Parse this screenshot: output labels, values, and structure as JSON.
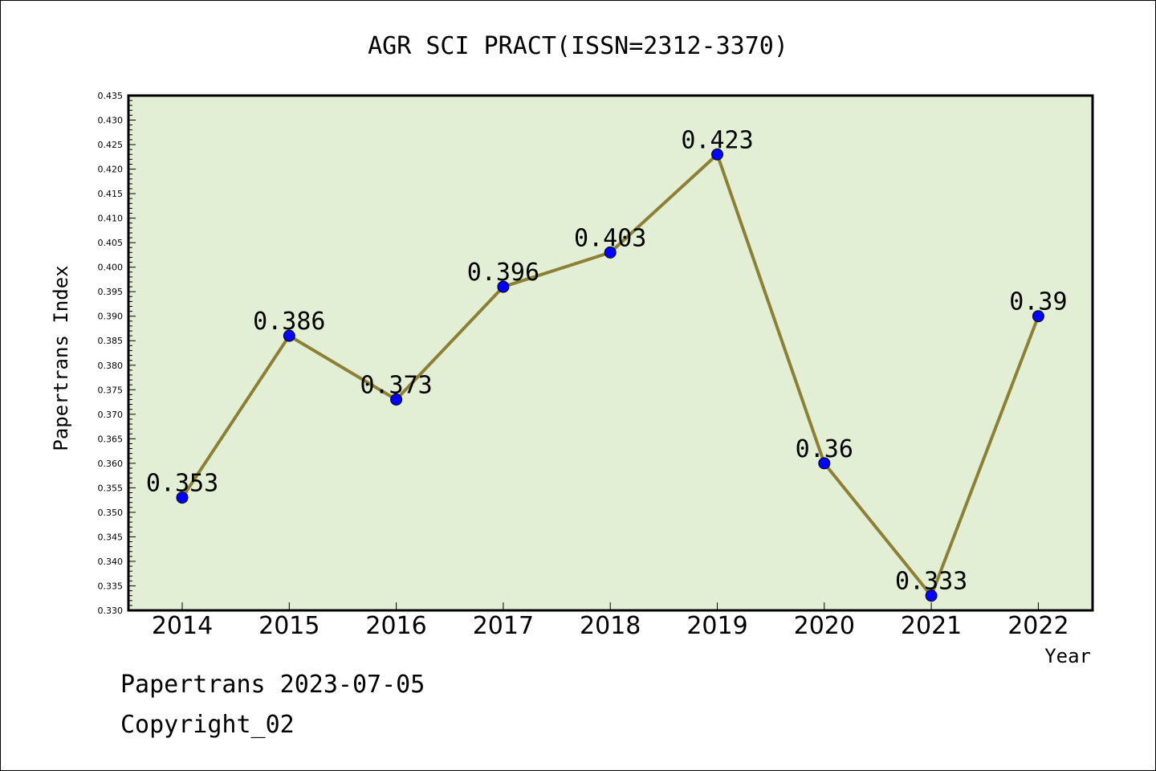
{
  "chart_data": {
    "type": "line",
    "title": "AGR SCI PRACT(ISSN=2312-3370)",
    "xlabel": "Year",
    "ylabel": "Papertrans Index",
    "x": [
      "2014",
      "2015",
      "2016",
      "2017",
      "2018",
      "2019",
      "2020",
      "2021",
      "2022"
    ],
    "values": [
      0.353,
      0.386,
      0.373,
      0.396,
      0.403,
      0.423,
      0.36,
      0.333,
      0.39
    ],
    "labels": [
      "0.353",
      "0.386",
      "0.373",
      "0.396",
      "0.403",
      "0.423",
      "0.36",
      "0.333",
      "0.39"
    ],
    "ylim": [
      0.33,
      0.435
    ],
    "yticks": [
      "0.330",
      "0.335",
      "0.340",
      "0.345",
      "0.350",
      "0.355",
      "0.360",
      "0.365",
      "0.370",
      "0.375",
      "0.380",
      "0.385",
      "0.390",
      "0.395",
      "0.400",
      "0.405",
      "0.410",
      "0.415",
      "0.420",
      "0.425",
      "0.430",
      "0.435"
    ],
    "grid": false,
    "colors": {
      "plot_background": "#e2efd5",
      "line": "#8b8036",
      "marker": "#0000ff"
    }
  },
  "footer": {
    "line1": "Papertrans 2023-07-05",
    "line2": "Copyright_02"
  }
}
